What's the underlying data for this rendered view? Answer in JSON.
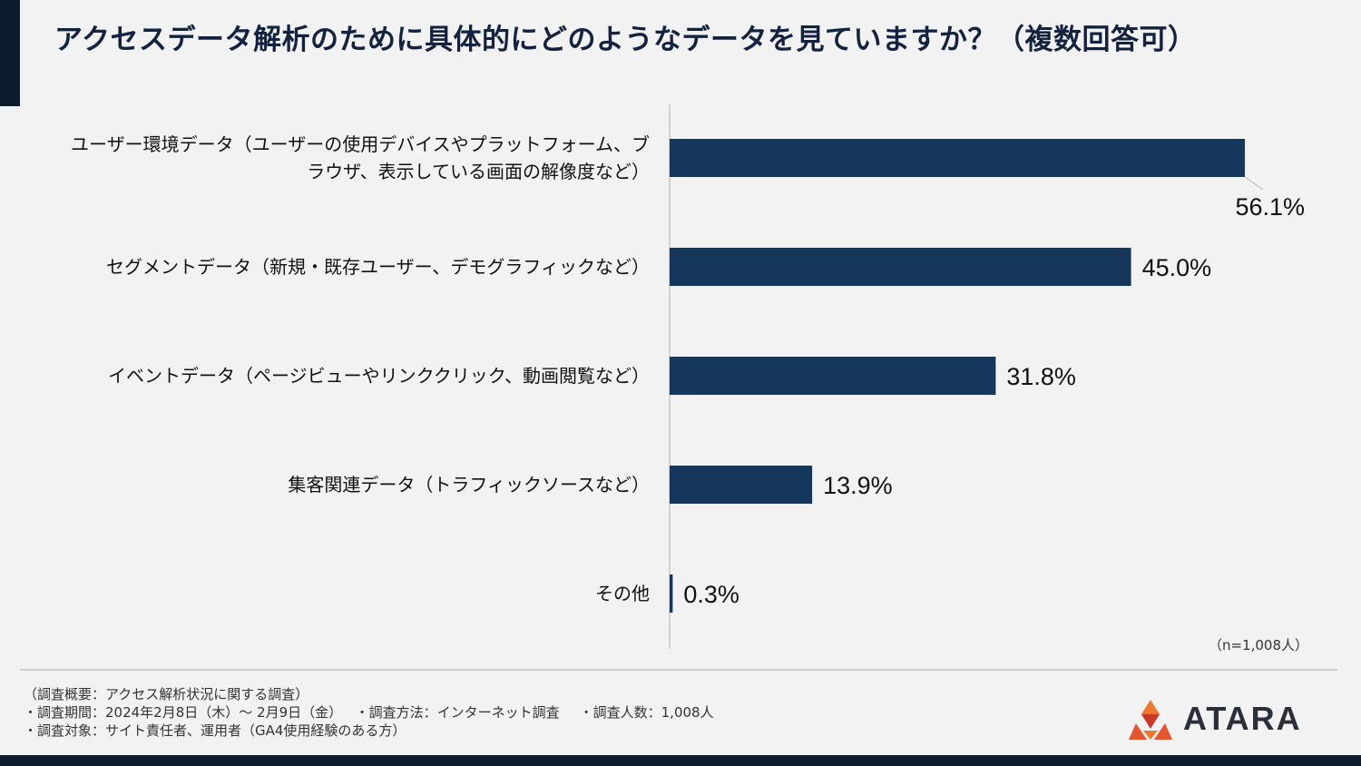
{
  "title": "アクセスデータ解析のために具体的にどのようなデータを見ていますか？（複数回答可）",
  "colors": {
    "bar": "#15375c",
    "accent": "#0d1b2e",
    "logo_orange": "#e8532b"
  },
  "chart_data": {
    "type": "bar",
    "orientation": "horizontal",
    "categories": [
      [
        "ユーザー環境データ（ユーザーの使用デバイスやプラットフォーム、ブ",
        "ラウザ、表示している画面の解像度など）"
      ],
      [
        "セグメントデータ（新規・既存ユーザー、デモグラフィックなど）"
      ],
      [
        "イベントデータ（ページビューやリンククリック、動画閲覧など）"
      ],
      [
        "集客関連データ（トラフィックソースなど）"
      ],
      [
        "その他"
      ]
    ],
    "values": [
      56.1,
      45.0,
      31.8,
      13.9,
      0.3
    ],
    "value_labels": [
      "56.1%",
      "45.0%",
      "31.8%",
      "13.9%",
      "0.3%"
    ],
    "xlim": [
      0,
      63
    ],
    "grid": false
  },
  "sample_size": "（n=1,008人）",
  "notes": [
    [
      "（調査概要：アクセス解析状況に関する調査）"
    ],
    [
      "・調査期間：2024年2月8日（木）～ 2月9日（金）",
      "・調査方法：インターネット調査",
      "・調査人数：1,008人"
    ],
    [
      "・調査対象：サイト責任者、運用者（GA4使用経験のある方）"
    ]
  ],
  "logo": {
    "name": "ATARA",
    "icon": "atara-logo-icon"
  }
}
